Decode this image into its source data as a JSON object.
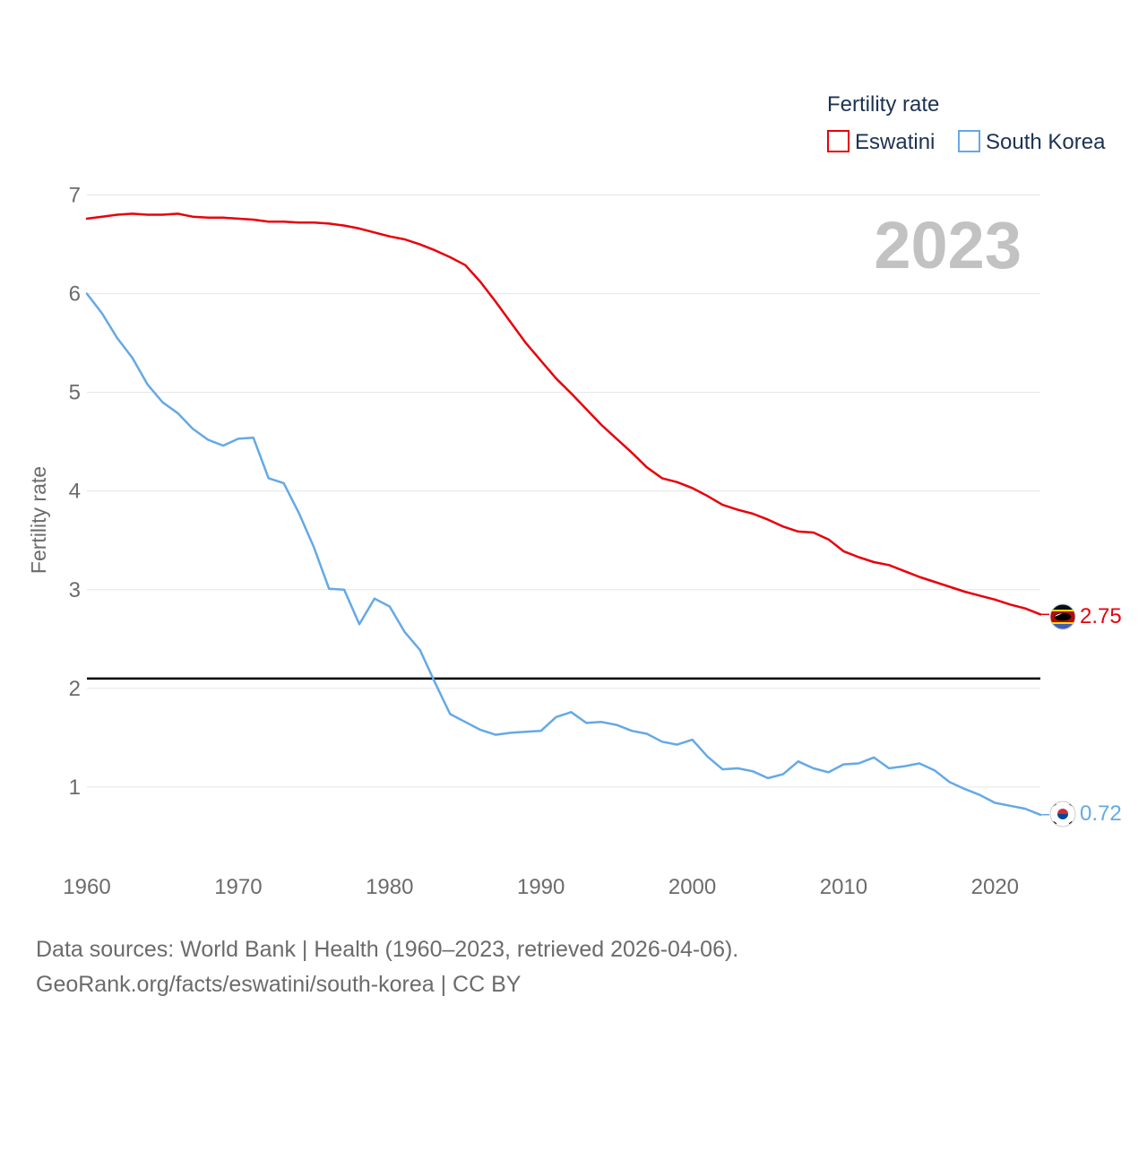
{
  "chart_data": {
    "type": "line",
    "legend_title": "Fertility rate",
    "ylabel": "Fertility rate",
    "xlabel": "",
    "year_watermark": "2023",
    "xlim": [
      1960,
      2023
    ],
    "ylim": [
      0,
      7.25
    ],
    "x_ticks": [
      "1960",
      "1970",
      "1980",
      "1990",
      "2000",
      "2010",
      "2020"
    ],
    "y_ticks": [
      "1",
      "2",
      "3",
      "4",
      "5",
      "6",
      "7"
    ],
    "reference_line": {
      "y": 2.1,
      "color": "#000000"
    },
    "x": [
      1960,
      1961,
      1962,
      1963,
      1964,
      1965,
      1966,
      1967,
      1968,
      1969,
      1970,
      1971,
      1972,
      1973,
      1974,
      1975,
      1976,
      1977,
      1978,
      1979,
      1980,
      1981,
      1982,
      1983,
      1984,
      1985,
      1986,
      1987,
      1988,
      1989,
      1990,
      1991,
      1992,
      1993,
      1994,
      1995,
      1996,
      1997,
      1998,
      1999,
      2000,
      2001,
      2002,
      2003,
      2004,
      2005,
      2006,
      2007,
      2008,
      2009,
      2010,
      2011,
      2012,
      2013,
      2014,
      2015,
      2016,
      2017,
      2018,
      2019,
      2020,
      2021,
      2022,
      2023
    ],
    "series": [
      {
        "name": "Eswatini",
        "color": "#e8000b",
        "end_label": "2.75",
        "flag_icon": "eswatini-flag-icon",
        "values": [
          6.76,
          6.78,
          6.8,
          6.81,
          6.8,
          6.8,
          6.81,
          6.78,
          6.77,
          6.77,
          6.76,
          6.75,
          6.73,
          6.73,
          6.72,
          6.72,
          6.71,
          6.69,
          6.66,
          6.62,
          6.58,
          6.55,
          6.5,
          6.44,
          6.37,
          6.29,
          6.12,
          5.92,
          5.71,
          5.5,
          5.32,
          5.14,
          4.99,
          4.83,
          4.67,
          4.53,
          4.39,
          4.24,
          4.13,
          4.09,
          4.03,
          3.95,
          3.86,
          3.81,
          3.77,
          3.71,
          3.64,
          3.59,
          3.58,
          3.51,
          3.39,
          3.33,
          3.28,
          3.25,
          3.19,
          3.13,
          3.08,
          3.03,
          2.98,
          2.94,
          2.9,
          2.85,
          2.81,
          2.75
        ]
      },
      {
        "name": "South Korea",
        "color": "#64a9e6",
        "end_label": "0.72",
        "flag_icon": "south-korea-flag-icon",
        "values": [
          6.0,
          5.8,
          5.55,
          5.35,
          5.08,
          4.9,
          4.79,
          4.63,
          4.52,
          4.46,
          4.53,
          4.54,
          4.13,
          4.08,
          3.78,
          3.43,
          3.01,
          3.0,
          2.65,
          2.91,
          2.83,
          2.57,
          2.39,
          2.06,
          1.74,
          1.66,
          1.58,
          1.53,
          1.55,
          1.56,
          1.57,
          1.71,
          1.76,
          1.65,
          1.66,
          1.63,
          1.57,
          1.54,
          1.46,
          1.43,
          1.48,
          1.31,
          1.18,
          1.19,
          1.16,
          1.09,
          1.13,
          1.26,
          1.19,
          1.15,
          1.23,
          1.24,
          1.3,
          1.19,
          1.21,
          1.24,
          1.17,
          1.05,
          0.98,
          0.92,
          0.84,
          0.81,
          0.78,
          0.72
        ]
      }
    ]
  },
  "source": {
    "line1": "Data sources: World Bank | Health (1960–2023, retrieved 2026-04-06).",
    "line2": "GeoRank.org/facts/eswatini/south-korea | CC BY"
  }
}
